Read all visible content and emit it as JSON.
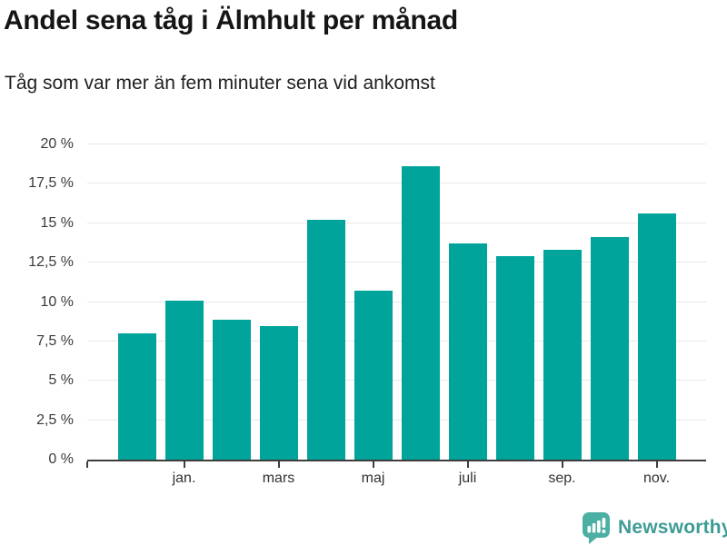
{
  "header": {
    "title": "Andel sena tåg i Älmhult per månad",
    "subtitle": "Tåg som var mer än fem minuter sena vid ankomst"
  },
  "chart_data": {
    "type": "bar",
    "title": "Andel sena tåg i Älmhult per månad",
    "subtitle": "Tåg som var mer än fem minuter sena vid ankomst",
    "values": [
      8.0,
      10.1,
      8.9,
      8.5,
      15.2,
      10.7,
      18.6,
      13.7,
      12.9,
      13.3,
      14.1,
      15.6
    ],
    "x_tick_labels": [
      "",
      "jan.",
      "",
      "mars",
      "",
      "maj",
      "",
      "juli",
      "",
      "sep.",
      "",
      "nov."
    ],
    "ylim": [
      0,
      20
    ],
    "yticks": [
      0,
      2.5,
      5,
      7.5,
      10,
      12.5,
      15,
      17.5,
      20
    ],
    "ytick_labels": [
      "0 %",
      "2,5 %",
      "5 %",
      "7,5 %",
      "10 %",
      "12,5 %",
      "15 %",
      "17,5 %",
      "20 %"
    ],
    "bar_color": "#00a49a",
    "grid": true,
    "legend": false,
    "unit": "%"
  },
  "footer": {
    "brand": "Newsworthy",
    "logo_icon": "newsworthy-chart-bubble-icon",
    "brand_text_color": "#3d9c95",
    "icon_color": "#4cafa4"
  }
}
